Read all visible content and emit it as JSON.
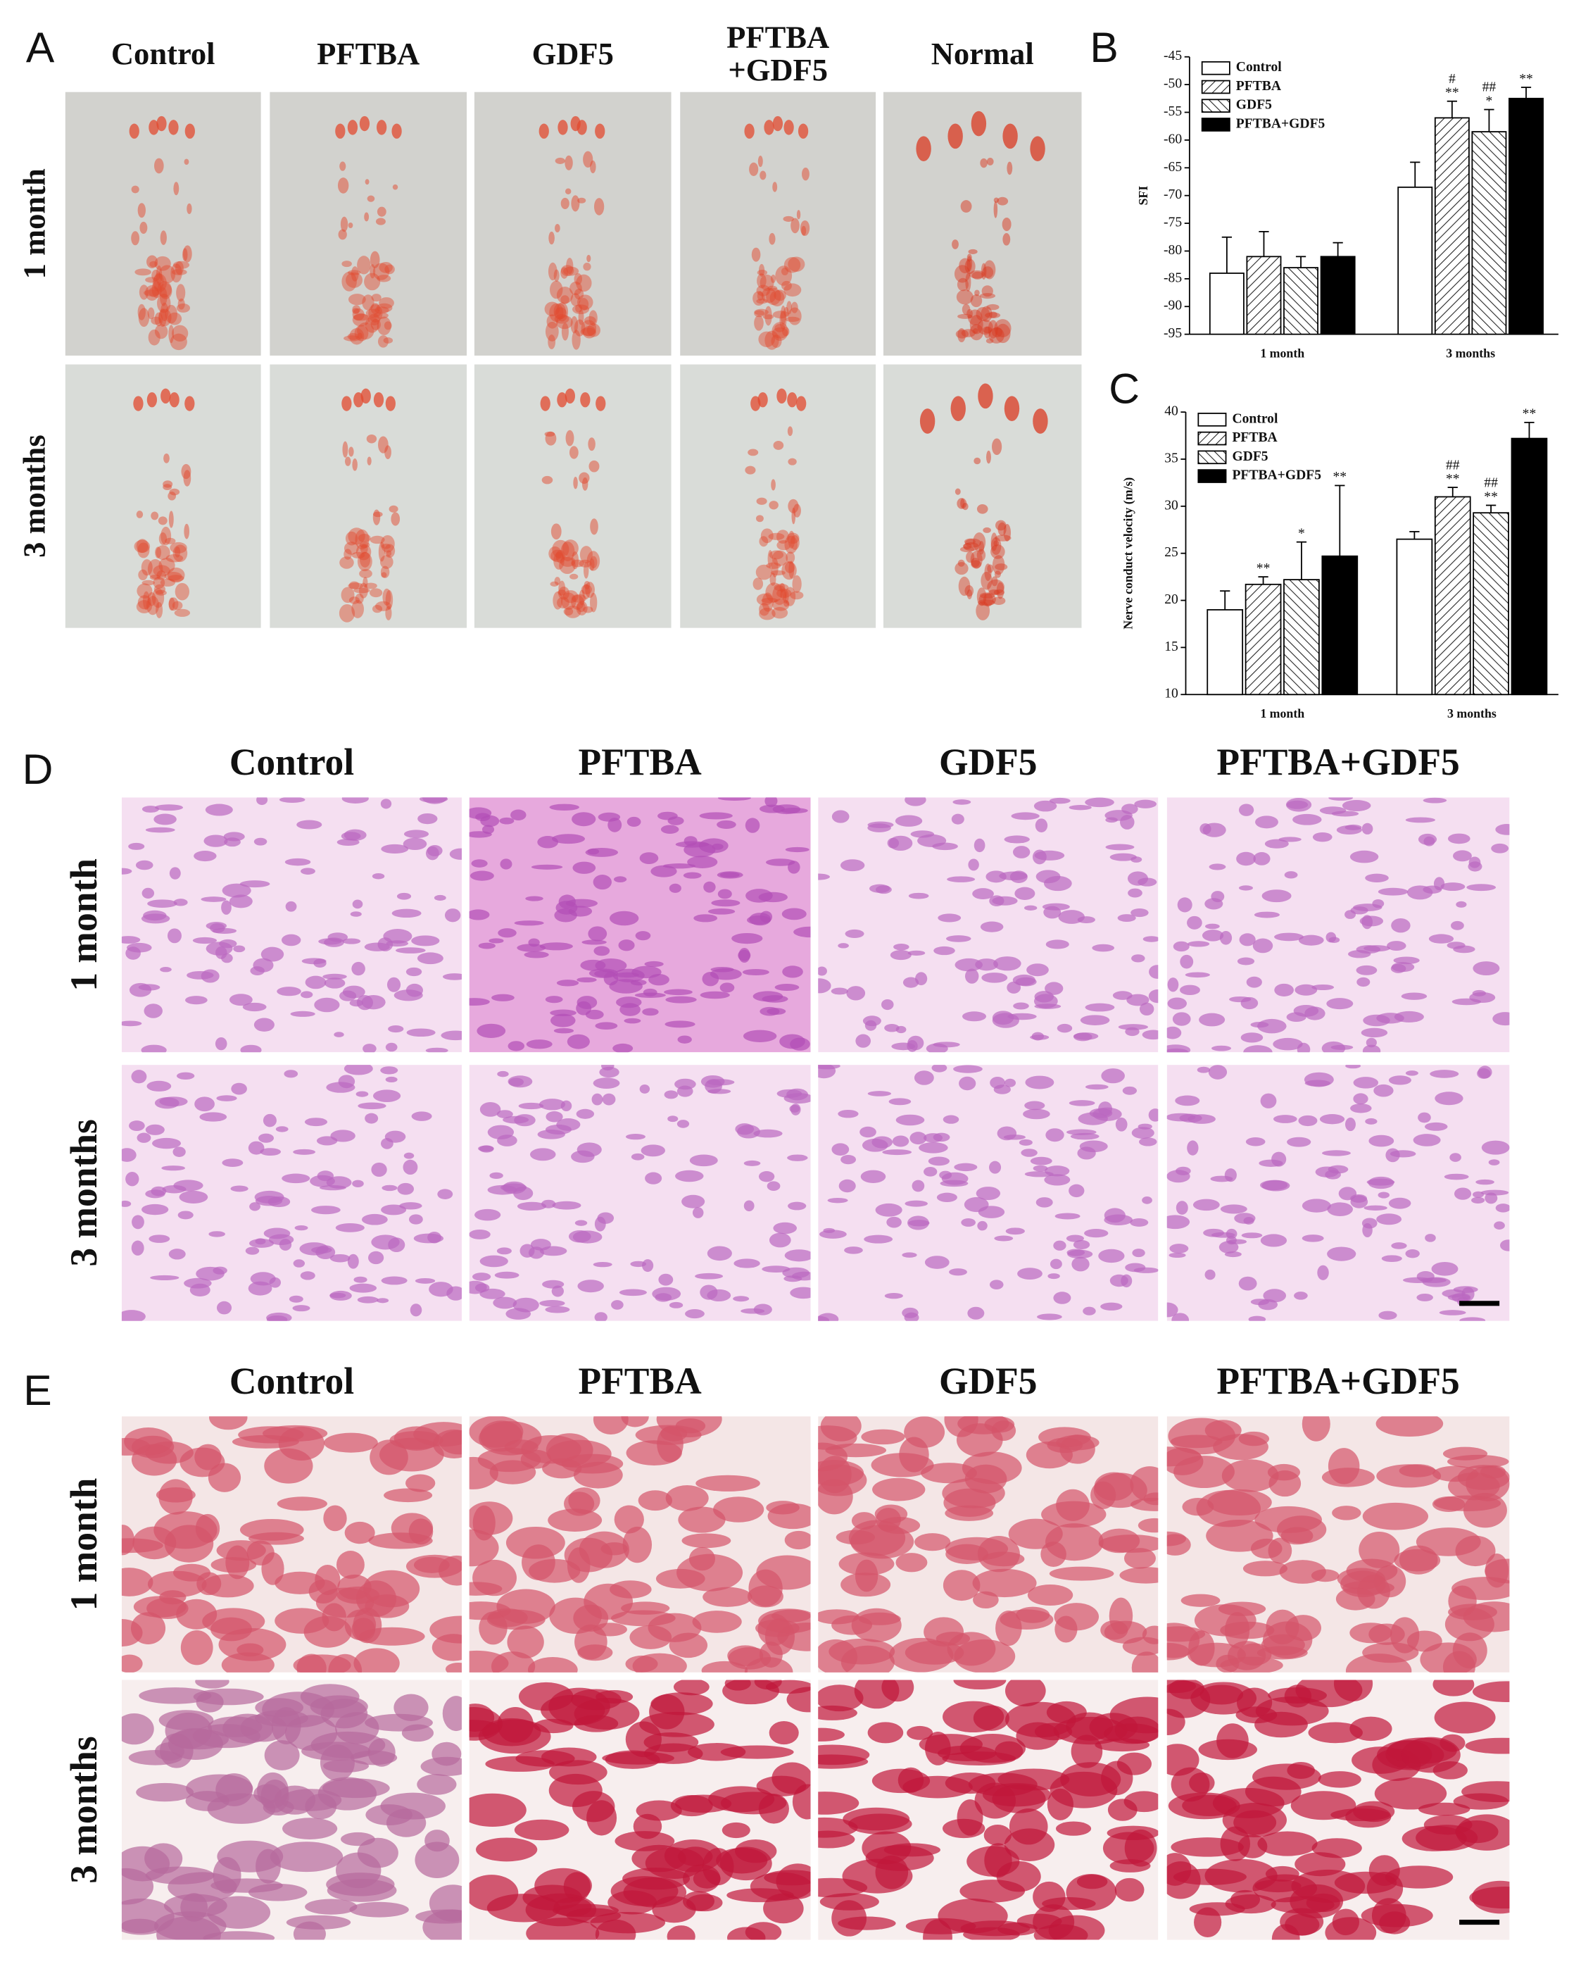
{
  "panel_labels": [
    "A",
    "B",
    "C",
    "D",
    "E"
  ],
  "footprints": {
    "columns": [
      [
        "Control"
      ],
      [
        "PFTBA"
      ],
      [
        "GDF5"
      ],
      [
        "PFTBA",
        "+GDF5"
      ],
      [
        "Normal"
      ]
    ],
    "rows": [
      "1 month",
      "3 months"
    ]
  },
  "he_staining": {
    "columns": [
      "Control",
      "PFTBA",
      "GDF5",
      "PFTBA+GDF5"
    ],
    "rows": [
      "1 month",
      "3 months"
    ]
  },
  "masson_staining": {
    "columns": [
      "Control",
      "PFTBA",
      "GDF5",
      "PFTBA+GDF5"
    ],
    "rows": [
      "1 month",
      "3 months"
    ]
  },
  "chart_data": [
    {
      "type": "bar",
      "ylabel": "SFI",
      "categories": [
        "1 month",
        "3 months"
      ],
      "ylim": [
        -95,
        -45
      ],
      "yticks": [
        -95,
        -90,
        -85,
        -80,
        -75,
        -70,
        -65,
        -60,
        -55,
        -50,
        -45
      ],
      "series": [
        {
          "name": "Control",
          "color": "#ffffff",
          "values": [
            -84,
            -68.5
          ],
          "errors": [
            6.5,
            4.5
          ],
          "annotations": [
            [],
            []
          ]
        },
        {
          "name": "PFTBA",
          "color": "#ffffff",
          "hatch": "/",
          "values": [
            -81,
            -56
          ],
          "errors": [
            4.5,
            3
          ],
          "annotations": [
            [],
            [
              "#",
              "**"
            ]
          ]
        },
        {
          "name": "GDF5",
          "color": "#ffffff",
          "hatch": "\\",
          "values": [
            -83,
            -58.5
          ],
          "errors": [
            2,
            4
          ],
          "annotations": [
            [],
            [
              "##",
              "*"
            ]
          ]
        },
        {
          "name": "PFTBA+GDF5",
          "color": "#000000",
          "values": [
            -81,
            -52.5
          ],
          "errors": [
            2.5,
            2
          ],
          "annotations": [
            [],
            [
              "**"
            ]
          ]
        }
      ]
    },
    {
      "type": "bar",
      "ylabel": "Nerve conduct velocity (m/s)",
      "categories": [
        "1 month",
        "3 months"
      ],
      "ylim": [
        10,
        40
      ],
      "yticks": [
        10,
        15,
        20,
        25,
        30,
        35,
        40
      ],
      "series": [
        {
          "name": "Control",
          "color": "#ffffff",
          "values": [
            19,
            26.5
          ],
          "errors": [
            2,
            0.8
          ],
          "annotations": [
            [],
            []
          ]
        },
        {
          "name": "PFTBA",
          "color": "#ffffff",
          "hatch": "/",
          "values": [
            21.7,
            31
          ],
          "errors": [
            0.8,
            1
          ],
          "annotations": [
            [
              "**"
            ],
            [
              "##",
              "**"
            ]
          ]
        },
        {
          "name": "GDF5",
          "color": "#ffffff",
          "hatch": "\\",
          "values": [
            22.2,
            29.3
          ],
          "errors": [
            4,
            0.8
          ],
          "annotations": [
            [
              "*"
            ],
            [
              "##",
              "**"
            ]
          ]
        },
        {
          "name": "PFTBA+GDF5",
          "color": "#000000",
          "values": [
            24.7,
            37.2
          ],
          "errors": [
            7.5,
            1.7
          ],
          "annotations": [
            [
              "**"
            ],
            [
              "**"
            ]
          ]
        }
      ]
    }
  ]
}
